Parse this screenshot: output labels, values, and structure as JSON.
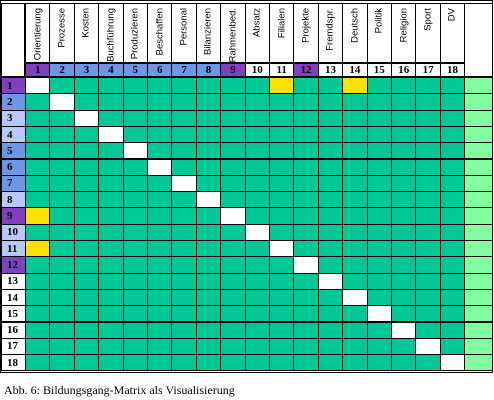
{
  "matrix": {
    "columns": [
      "Orientierung",
      "Prozesse",
      "Kosten",
      "Buchführung",
      "Produzieren",
      "Beschaffen",
      "Personal",
      "Bilanzieren",
      "Rahmenbed.",
      "Absatz",
      "Filialen",
      "Projekte",
      "Fremdspr.",
      "Deutsch",
      "Politik",
      "Religion",
      "Sport",
      "DV"
    ],
    "numbers": [
      "1",
      "2",
      "3",
      "4",
      "5",
      "6",
      "7",
      "8",
      "9",
      "10",
      "11",
      "12",
      "13",
      "14",
      "15",
      "16",
      "17",
      "18"
    ],
    "number_colors": {
      "purple": "#8040c0",
      "blue": "#6c96e6",
      "lightblue": "#b8c8f8",
      "white": "#ffffff"
    },
    "column_number_color_keys": [
      "purple",
      "blue",
      "blue",
      "blue",
      "blue",
      "blue",
      "blue",
      "blue",
      "purple",
      "white",
      "white",
      "purple",
      "white",
      "white",
      "white",
      "white",
      "white",
      "white"
    ],
    "row_number_color_keys": [
      "purple",
      "blue",
      "lightblue",
      "lightblue",
      "blue",
      "blue",
      "blue",
      "lightblue",
      "purple",
      "lightblue",
      "lightblue",
      "purple",
      "white",
      "white",
      "white",
      "white",
      "white",
      "white"
    ],
    "cell_color": "#00c896",
    "diagonal_color": "#ffffff",
    "highlight_color": "#ffe000",
    "last_column_color": "#80ff9c",
    "highlighted_cells": [
      [
        0,
        10
      ],
      [
        0,
        13
      ],
      [
        8,
        0
      ],
      [
        10,
        0
      ]
    ]
  },
  "caption": "Abb. 6: Bildungsgang-Matrix als Visualisierung"
}
